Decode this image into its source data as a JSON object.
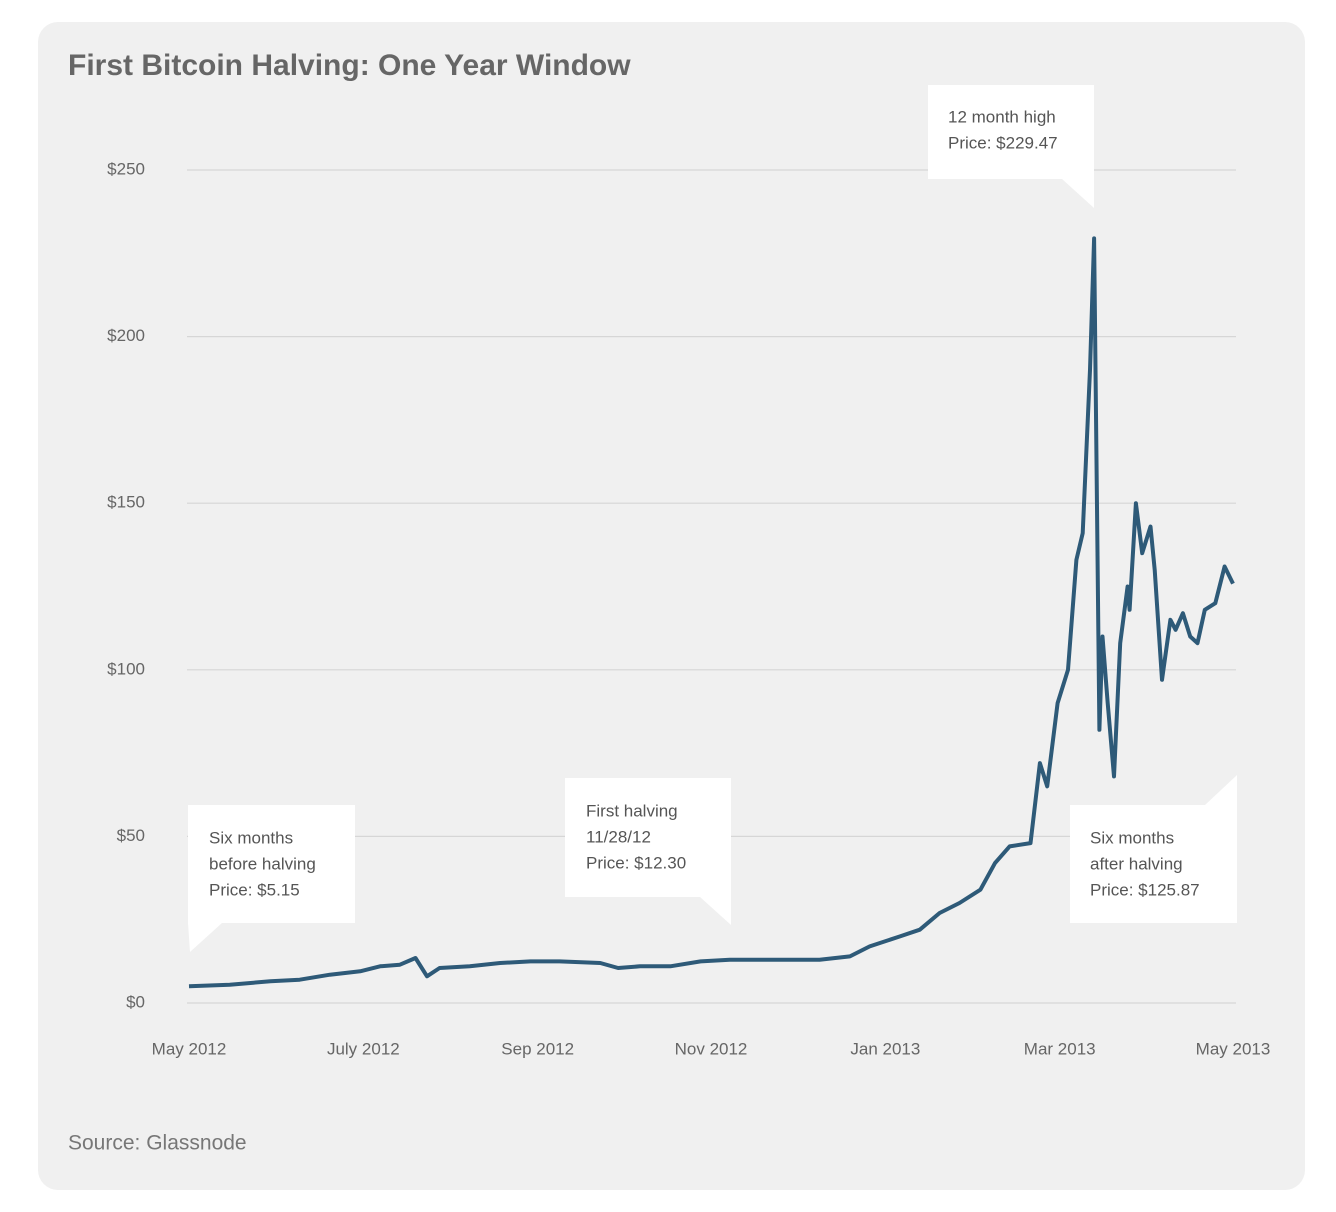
{
  "chart_data": {
    "type": "line",
    "title": "First Bitcoin Halving: One Year Window",
    "source": "Source: Glassnode",
    "x": [
      2012.333,
      2012.372,
      2012.411,
      2012.439,
      2012.468,
      2012.497,
      2012.516,
      2012.535,
      2012.55,
      2012.561,
      2012.573,
      2012.602,
      2012.631,
      2012.66,
      2012.688,
      2012.727,
      2012.744,
      2012.765,
      2012.794,
      2012.823,
      2012.851,
      2012.899,
      2012.937,
      2012.966,
      2012.985,
      2013.014,
      2013.033,
      2013.052,
      2013.071,
      2013.091,
      2013.105,
      2013.119,
      2013.139,
      2013.148,
      2013.155,
      2013.165,
      2013.175,
      2013.183,
      2013.189,
      2013.196,
      2013.2,
      2013.205,
      2013.208,
      2013.213,
      2013.219,
      2013.225,
      2013.232,
      2013.234,
      2013.24,
      2013.246,
      2013.254,
      2013.258,
      2013.265,
      2013.273,
      2013.278,
      2013.285,
      2013.292,
      2013.299,
      2013.306,
      2013.316,
      2013.325,
      2013.333
    ],
    "series": [
      {
        "name": "Price",
        "color": "#2e5a78",
        "values": [
          5,
          5.5,
          6.5,
          7,
          8.5,
          9.5,
          11,
          11.5,
          13.5,
          8,
          10.5,
          11,
          12,
          12.5,
          12.5,
          12,
          10.5,
          11,
          11,
          12.5,
          13,
          13,
          13,
          14,
          17,
          20,
          22,
          27,
          30,
          34,
          42,
          47,
          48,
          72,
          65,
          90,
          100,
          133,
          141,
          190,
          229.47,
          82,
          110,
          90,
          68,
          108,
          125,
          118,
          150,
          135,
          143,
          130,
          97,
          115,
          112,
          117,
          110,
          108,
          118,
          120,
          131,
          125.87
        ]
      }
    ],
    "xlim": [
      2012.333,
      2013.333
    ],
    "xticks": [
      {
        "value": 2012.333,
        "label": "May 2012"
      },
      {
        "value": 2012.5,
        "label": "July 2012"
      },
      {
        "value": 2012.667,
        "label": "Sep 2012"
      },
      {
        "value": 2012.833,
        "label": "Nov 2012"
      },
      {
        "value": 2013.0,
        "label": "Jan 2013"
      },
      {
        "value": 2013.167,
        "label": "Mar 2013"
      },
      {
        "value": 2013.333,
        "label": "May 2013"
      }
    ],
    "ylim": [
      0,
      250
    ],
    "yticks": [
      {
        "value": 0,
        "label": "$0"
      },
      {
        "value": 50,
        "label": "$50"
      },
      {
        "value": 100,
        "label": "$100"
      },
      {
        "value": 150,
        "label": "$150"
      },
      {
        "value": 200,
        "label": "$200"
      },
      {
        "value": 250,
        "label": "$250"
      }
    ],
    "grid": true,
    "annotations": [
      {
        "lines": [
          "Six months",
          "before halving",
          "Price: $5.15"
        ]
      },
      {
        "lines": [
          "First halving",
          "11/28/12",
          "Price: $12.30"
        ]
      },
      {
        "lines": [
          "12 month high",
          "Price: $229.47"
        ]
      },
      {
        "lines": [
          "Six months",
          "after halving",
          "Price: $125.87"
        ]
      }
    ]
  }
}
